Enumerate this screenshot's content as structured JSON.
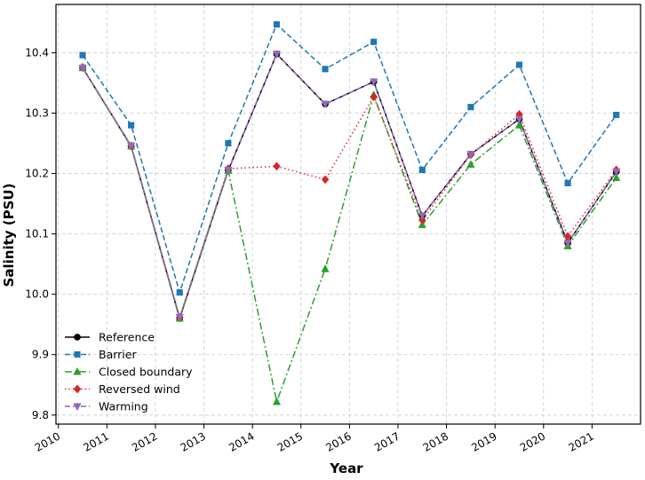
{
  "chart_data": {
    "type": "line",
    "xlabel": "Year",
    "ylabel": "Salinity (PSU)",
    "xlim": [
      2009.95,
      2022.0
    ],
    "ylim": [
      9.785,
      10.48
    ],
    "xticks": [
      2010,
      2011,
      2012,
      2013,
      2014,
      2015,
      2016,
      2017,
      2018,
      2019,
      2020,
      2021
    ],
    "xtick_labels": [
      "2010",
      "2011",
      "2012",
      "2013",
      "2014",
      "2015",
      "2016",
      "2017",
      "2018",
      "2019",
      "2020",
      "2021"
    ],
    "yticks": [
      9.8,
      9.9,
      10.0,
      10.1,
      10.2,
      10.3,
      10.4
    ],
    "ytick_labels": [
      "9.8",
      "9.9",
      "10.0",
      "10.1",
      "10.2",
      "10.3",
      "10.4"
    ],
    "grid": true,
    "legend_position": "lower-left",
    "x": [
      2010.5,
      2011.5,
      2012.5,
      2013.5,
      2014.5,
      2015.5,
      2016.5,
      2017.5,
      2018.5,
      2019.5,
      2020.5,
      2021.5
    ],
    "series": [
      {
        "name": "Reference",
        "color": "#000000",
        "marker": "circle",
        "dash": "solid",
        "values": [
          10.375,
          10.245,
          9.96,
          10.205,
          10.398,
          10.315,
          10.352,
          10.13,
          10.232,
          10.29,
          10.085,
          10.203
        ]
      },
      {
        "name": "Barrier",
        "color": "#1f77b4",
        "marker": "square",
        "dash": "dashed",
        "values": [
          10.396,
          10.28,
          10.003,
          10.25,
          10.447,
          10.373,
          10.418,
          10.206,
          10.31,
          10.38,
          10.184,
          10.297
        ]
      },
      {
        "name": "Closed boundary",
        "color": "#2ca02c",
        "marker": "triangle-up",
        "dash": "dashdot",
        "values": [
          10.375,
          10.245,
          9.96,
          10.205,
          9.822,
          10.042,
          10.33,
          10.115,
          10.215,
          10.28,
          10.08,
          10.193
        ]
      },
      {
        "name": "Reversed wind",
        "color": "#d62728",
        "marker": "diamond",
        "dash": "dotted",
        "values": [
          10.376,
          10.246,
          9.962,
          10.208,
          10.212,
          10.19,
          10.327,
          10.123,
          10.231,
          10.298,
          10.096,
          10.206
        ]
      },
      {
        "name": "Warming",
        "color": "#9467bd",
        "marker": "triangle-down",
        "dash": "dashed",
        "values": [
          10.375,
          10.246,
          9.962,
          10.206,
          10.398,
          10.315,
          10.352,
          10.13,
          10.232,
          10.29,
          10.085,
          10.203
        ]
      }
    ]
  }
}
